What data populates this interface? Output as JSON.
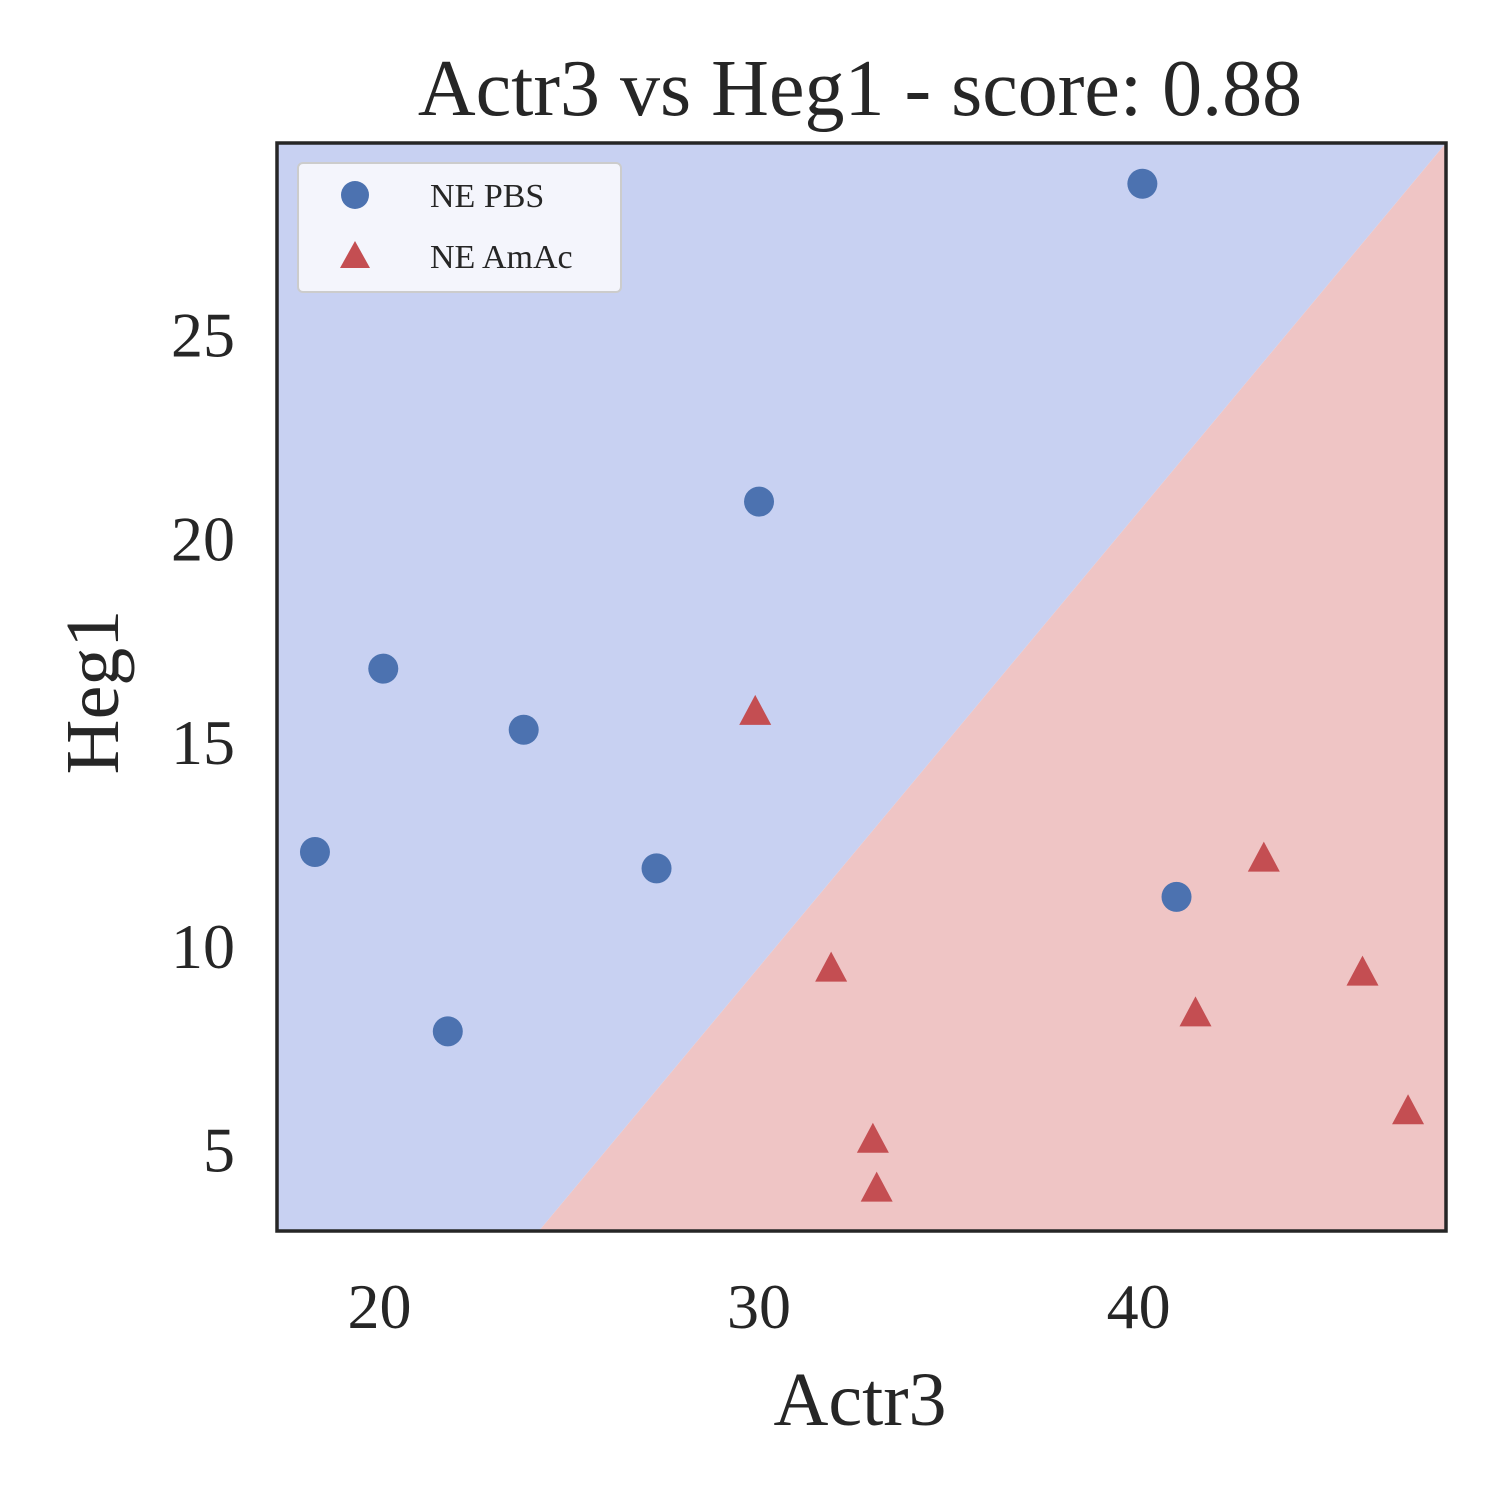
{
  "chart_data": {
    "type": "scatter",
    "title": "Actr3 vs Heg1 - score: 0.88",
    "xlabel": "Actr3",
    "ylabel": "Heg1",
    "xlim": [
      17.3,
      48.1
    ],
    "ylim": [
      3.0,
      29.7
    ],
    "xticks": [
      20,
      30,
      40
    ],
    "yticks": [
      5,
      10,
      15,
      20,
      25
    ],
    "grid": false,
    "legend_position": "top-left",
    "decision_boundary": {
      "points": [
        [
          24.2,
          3.0
        ],
        [
          48.1,
          29.7
        ]
      ],
      "upper_color": "#c8d1f2",
      "lower_color": "#efc5c5"
    },
    "series": [
      {
        "name": "NE PBS",
        "marker": "circle",
        "color": "#4c72b0",
        "x": [
          18.3,
          20.1,
          21.8,
          23.8,
          27.3,
          30.0,
          40.1,
          41.0
        ],
        "y": [
          12.3,
          16.8,
          7.9,
          15.3,
          11.9,
          20.9,
          28.7,
          11.2
        ]
      },
      {
        "name": "NE AmAc",
        "marker": "triangle",
        "color": "#c44e52",
        "x": [
          29.9,
          31.9,
          33.0,
          33.1,
          41.5,
          43.3,
          45.9,
          47.1
        ],
        "y": [
          15.7,
          9.4,
          5.2,
          4.0,
          8.3,
          12.1,
          9.3,
          5.9
        ]
      }
    ]
  }
}
